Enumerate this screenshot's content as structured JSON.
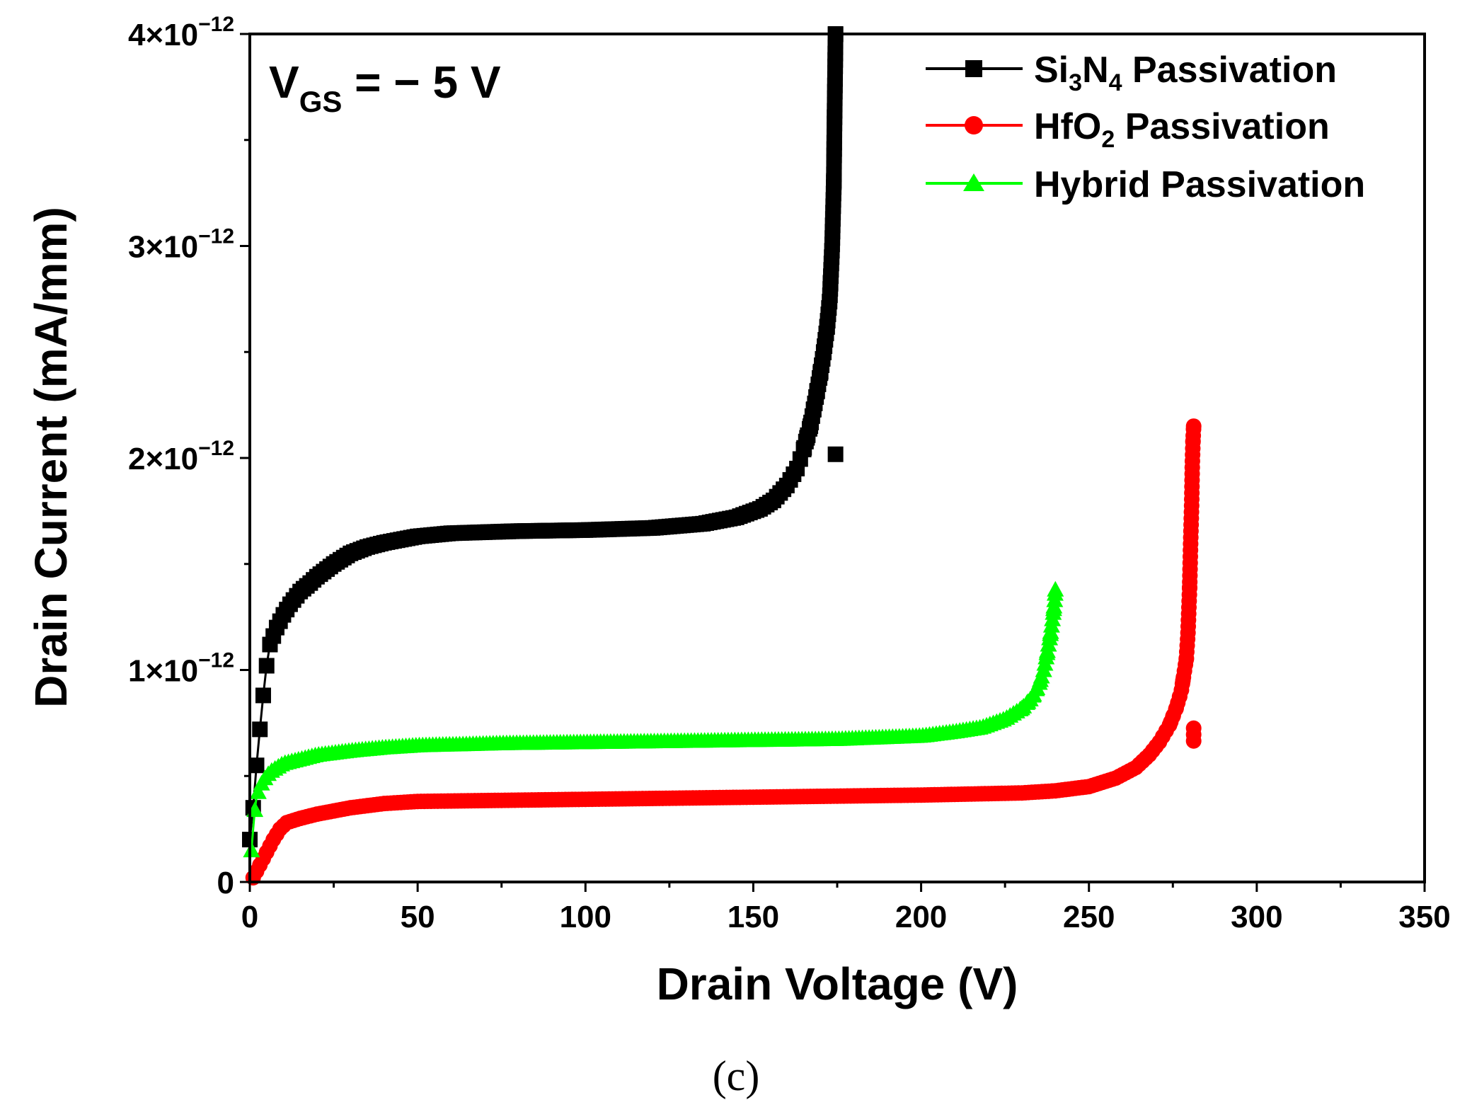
{
  "chart_data": {
    "type": "line",
    "xlabel": "Drain Voltage (V)",
    "ylabel": "Drain Current (mA/mm)",
    "xlim": [
      0,
      350
    ],
    "ylim": [
      0,
      4
    ],
    "y_scale_exponent": -12,
    "x_ticks": [
      0,
      50,
      100,
      150,
      200,
      250,
      300,
      350
    ],
    "x_tick_labels": [
      "0",
      "50",
      "100",
      "150",
      "200",
      "250",
      "300",
      "350"
    ],
    "y_ticks": [
      0,
      1,
      2,
      3,
      4
    ],
    "y_tick_labels": [
      {
        "mantissa": "0",
        "exponent": ""
      },
      {
        "mantissa": "1×10",
        "exponent": "−12"
      },
      {
        "mantissa": "2×10",
        "exponent": "−12"
      },
      {
        "mantissa": "3×10",
        "exponent": "−12"
      },
      {
        "mantissa": "4×10",
        "exponent": "−12"
      }
    ],
    "annotation": {
      "main": "V",
      "sub": "GS",
      "rest": " = − 5 V"
    },
    "panel_label": "(c)",
    "legend_position": "top-right",
    "series": [
      {
        "name": "Si3N4 Passivation",
        "legend": {
          "a": "Si",
          "a_sub": "3",
          "b": "N",
          "b_sub": "4",
          "c": " Passivation"
        },
        "color": "#000000",
        "marker": "square",
        "points": [
          [
            0,
            0.2
          ],
          [
            1,
            0.35
          ],
          [
            2,
            0.55
          ],
          [
            3,
            0.72
          ],
          [
            4,
            0.88
          ],
          [
            5,
            1.02
          ],
          [
            6,
            1.12
          ],
          [
            8,
            1.2
          ],
          [
            10,
            1.26
          ],
          [
            12,
            1.31
          ],
          [
            15,
            1.37
          ],
          [
            18,
            1.41
          ],
          [
            20,
            1.44
          ],
          [
            25,
            1.5
          ],
          [
            30,
            1.55
          ],
          [
            35,
            1.58
          ],
          [
            40,
            1.6
          ],
          [
            50,
            1.63
          ],
          [
            60,
            1.645
          ],
          [
            80,
            1.655
          ],
          [
            100,
            1.66
          ],
          [
            120,
            1.67
          ],
          [
            135,
            1.69
          ],
          [
            145,
            1.72
          ],
          [
            152,
            1.76
          ],
          [
            156,
            1.8
          ],
          [
            160,
            1.87
          ],
          [
            163,
            1.95
          ],
          [
            165,
            2.04
          ],
          [
            167,
            2.15
          ],
          [
            168.5,
            2.27
          ],
          [
            170,
            2.4
          ],
          [
            171,
            2.5
          ],
          [
            172,
            2.62
          ],
          [
            172.8,
            2.75
          ],
          [
            173.5,
            3.0
          ],
          [
            174,
            3.3
          ],
          [
            174.2,
            3.6
          ],
          [
            174.4,
            3.85
          ],
          [
            174.5,
            4.0
          ]
        ]
      },
      {
        "name": "HfO2 Passivation",
        "legend": {
          "a": "HfO",
          "a_sub": "2",
          "b": "",
          "b_sub": "",
          "c": " Passivation"
        },
        "color": "#ff0000",
        "marker": "circle",
        "points": [
          [
            1,
            0.02
          ],
          [
            3,
            0.08
          ],
          [
            5,
            0.14
          ],
          [
            7,
            0.2
          ],
          [
            9,
            0.25
          ],
          [
            11,
            0.28
          ],
          [
            15,
            0.3
          ],
          [
            20,
            0.32
          ],
          [
            30,
            0.35
          ],
          [
            40,
            0.37
          ],
          [
            50,
            0.38
          ],
          [
            75,
            0.385
          ],
          [
            100,
            0.39
          ],
          [
            150,
            0.4
          ],
          [
            200,
            0.41
          ],
          [
            230,
            0.42
          ],
          [
            240,
            0.43
          ],
          [
            250,
            0.45
          ],
          [
            258,
            0.49
          ],
          [
            264,
            0.54
          ],
          [
            268,
            0.6
          ],
          [
            271,
            0.66
          ],
          [
            274,
            0.74
          ],
          [
            276,
            0.82
          ],
          [
            277.5,
            0.9
          ],
          [
            278.5,
            1.0
          ],
          [
            279,
            1.05
          ],
          [
            279.5,
            1.17
          ],
          [
            280,
            1.39
          ],
          [
            280.3,
            1.6
          ],
          [
            280.6,
            1.78
          ],
          [
            280.8,
            1.97
          ],
          [
            281,
            2.08
          ],
          [
            281.2,
            2.15
          ]
        ]
      },
      {
        "name": "Hybrid Passivation",
        "legend": {
          "a": "Hybrid",
          "a_sub": "",
          "b": "",
          "b_sub": "",
          "c": " Passivation"
        },
        "color": "#00ff00",
        "marker": "triangle",
        "points": [
          [
            0.5,
            0.15
          ],
          [
            1,
            0.25
          ],
          [
            1.5,
            0.34
          ],
          [
            2,
            0.4
          ],
          [
            3,
            0.45
          ],
          [
            4,
            0.48
          ],
          [
            6,
            0.52
          ],
          [
            10,
            0.56
          ],
          [
            15,
            0.58
          ],
          [
            20,
            0.6
          ],
          [
            30,
            0.62
          ],
          [
            40,
            0.635
          ],
          [
            50,
            0.645
          ],
          [
            75,
            0.655
          ],
          [
            100,
            0.66
          ],
          [
            150,
            0.67
          ],
          [
            175,
            0.675
          ],
          [
            200,
            0.69
          ],
          [
            210,
            0.71
          ],
          [
            218,
            0.73
          ],
          [
            225,
            0.77
          ],
          [
            230,
            0.82
          ],
          [
            233,
            0.87
          ],
          [
            235,
            0.93
          ],
          [
            236.5,
            1.0
          ],
          [
            237.5,
            1.08
          ],
          [
            238.5,
            1.17
          ],
          [
            239.3,
            1.26
          ],
          [
            239.8,
            1.33
          ],
          [
            240,
            1.38
          ]
        ]
      }
    ]
  }
}
